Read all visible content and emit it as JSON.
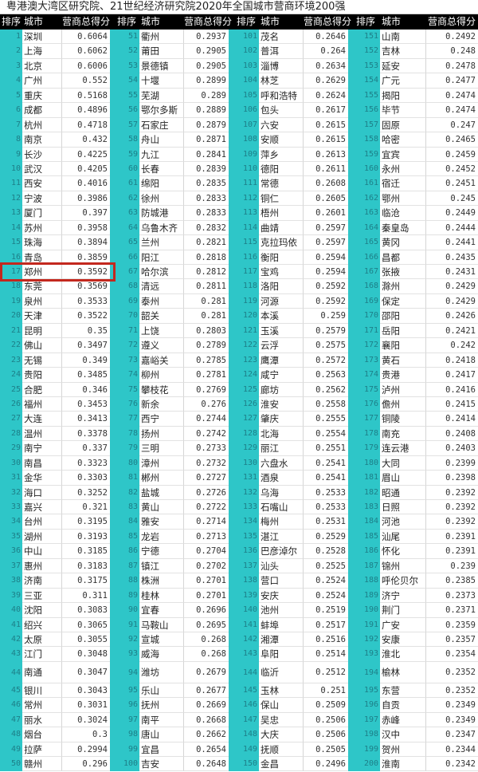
{
  "title": "粤港澳大湾区研究院、21世纪经济研究院2020年全国城市营商环境200强",
  "headers": {
    "rank": "排序",
    "city": "城市",
    "score": "营商总得分"
  },
  "highlight_color": "#c3281e",
  "teal_color": "#2ec6c8",
  "groups": [
    {
      "rows": [
        [
          "1",
          "深圳",
          "0.6064"
        ],
        [
          "2",
          "上海",
          "0.6062"
        ],
        [
          "3",
          "北京",
          "0.6006"
        ],
        [
          "4",
          "广州",
          "0.552"
        ],
        [
          "5",
          "重庆",
          "0.5168"
        ],
        [
          "6",
          "成都",
          "0.4896"
        ],
        [
          "7",
          "杭州",
          "0.4718"
        ],
        [
          "8",
          "南京",
          "0.432"
        ],
        [
          "9",
          "长沙",
          "0.4225"
        ],
        [
          "10",
          "武汉",
          "0.4205"
        ],
        [
          "11",
          "西安",
          "0.4016"
        ],
        [
          "12",
          "宁波",
          "0.3986"
        ],
        [
          "13",
          "厦门",
          "0.397"
        ],
        [
          "14",
          "苏州",
          "0.3958"
        ],
        [
          "15",
          "珠海",
          "0.3894"
        ],
        [
          "16",
          "青岛",
          "0.3859"
        ],
        [
          "17",
          "郑州",
          "0.3592"
        ],
        [
          "18",
          "东莞",
          "0.3569"
        ],
        [
          "19",
          "泉州",
          "0.3533"
        ],
        [
          "20",
          "天津",
          "0.3522"
        ],
        [
          "21",
          "昆明",
          "0.35"
        ],
        [
          "22",
          "佛山",
          "0.3497"
        ],
        [
          "23",
          "无锡",
          "0.349"
        ],
        [
          "24",
          "贵阳",
          "0.3485"
        ],
        [
          "25",
          "合肥",
          "0.346"
        ],
        [
          "26",
          "福州",
          "0.3453"
        ],
        [
          "27",
          "大连",
          "0.3413"
        ],
        [
          "28",
          "温州",
          "0.3378"
        ],
        [
          "29",
          "南宁",
          "0.337"
        ],
        [
          "30",
          "南昌",
          "0.3323"
        ],
        [
          "31",
          "金华",
          "0.3303"
        ],
        [
          "32",
          "海口",
          "0.3252"
        ],
        [
          "33",
          "嘉兴",
          "0.321"
        ],
        [
          "34",
          "台州",
          "0.3195"
        ],
        [
          "35",
          "湖州",
          "0.3193"
        ],
        [
          "36",
          "中山",
          "0.3185"
        ],
        [
          "37",
          "惠州",
          "0.3183"
        ],
        [
          "38",
          "济南",
          "0.3175"
        ],
        [
          "39",
          "三亚",
          "0.311"
        ],
        [
          "40",
          "沈阳",
          "0.3083"
        ],
        [
          "41",
          "绍兴",
          "0.3065"
        ],
        [
          "42",
          "太原",
          "0.3055"
        ],
        [
          "43",
          "江门",
          "0.3048"
        ],
        [
          "44",
          "南通",
          "0.3047"
        ],
        [
          "45",
          "银川",
          "0.3043"
        ],
        [
          "46",
          "常州",
          "0.3031"
        ],
        [
          "47",
          "丽水",
          "0.3024"
        ],
        [
          "48",
          "烟台",
          "0.3"
        ],
        [
          "49",
          "拉萨",
          "0.2994"
        ],
        [
          "50",
          "赣州",
          "0.296"
        ]
      ]
    },
    {
      "rows": [
        [
          "51",
          "衢州",
          "0.2937"
        ],
        [
          "52",
          "莆田",
          "0.2905"
        ],
        [
          "53",
          "景德镇",
          "0.2905"
        ],
        [
          "54",
          "十堰",
          "0.2899"
        ],
        [
          "55",
          "芜湖",
          "0.289"
        ],
        [
          "56",
          "鄂尔多斯",
          "0.2889"
        ],
        [
          "57",
          "石家庄",
          "0.2879"
        ],
        [
          "58",
          "舟山",
          "0.2871"
        ],
        [
          "59",
          "九江",
          "0.2841"
        ],
        [
          "60",
          "长春",
          "0.2839"
        ],
        [
          "61",
          "绵阳",
          "0.2835"
        ],
        [
          "62",
          "徐州",
          "0.2833"
        ],
        [
          "63",
          "防城港",
          "0.2833"
        ],
        [
          "64",
          "乌鲁木齐",
          "0.2832"
        ],
        [
          "65",
          "兰州",
          "0.2821"
        ],
        [
          "66",
          "阳江",
          "0.2818"
        ],
        [
          "67",
          "哈尔滨",
          "0.2812"
        ],
        [
          "68",
          "清远",
          "0.2811"
        ],
        [
          "69",
          "泰州",
          "0.281"
        ],
        [
          "70",
          "韶关",
          "0.281"
        ],
        [
          "71",
          "上饶",
          "0.2803"
        ],
        [
          "72",
          "遵义",
          "0.2789"
        ],
        [
          "73",
          "嘉峪关",
          "0.2785"
        ],
        [
          "74",
          "柳州",
          "0.2781"
        ],
        [
          "75",
          "攀枝花",
          "0.2769"
        ],
        [
          "76",
          "新余",
          "0.276"
        ],
        [
          "77",
          "西宁",
          "0.2744"
        ],
        [
          "78",
          "扬州",
          "0.2742"
        ],
        [
          "79",
          "三明",
          "0.2733"
        ],
        [
          "80",
          "漳州",
          "0.2732"
        ],
        [
          "81",
          "郴州",
          "0.2727"
        ],
        [
          "82",
          "盐城",
          "0.2726"
        ],
        [
          "83",
          "黄山",
          "0.2722"
        ],
        [
          "84",
          "雅安",
          "0.2714"
        ],
        [
          "85",
          "龙岩",
          "0.2713"
        ],
        [
          "86",
          "宁德",
          "0.2704"
        ],
        [
          "87",
          "镇江",
          "0.2702"
        ],
        [
          "88",
          "株洲",
          "0.2701"
        ],
        [
          "89",
          "桂林",
          "0.2701"
        ],
        [
          "90",
          "宜春",
          "0.2696"
        ],
        [
          "91",
          "马鞍山",
          "0.2695"
        ],
        [
          "92",
          "宣城",
          "0.268"
        ],
        [
          "93",
          "威海",
          "0.268"
        ],
        [
          "94",
          "潍坊",
          "0.2679"
        ],
        [
          "95",
          "乐山",
          "0.2677"
        ],
        [
          "96",
          "抚州",
          "0.2669"
        ],
        [
          "97",
          "南平",
          "0.2668"
        ],
        [
          "98",
          "唐山",
          "0.2662"
        ],
        [
          "99",
          "宜昌",
          "0.2654"
        ],
        [
          "100",
          "吉安",
          "0.2648"
        ]
      ]
    },
    {
      "rows": [
        [
          "101",
          "茂名",
          "0.2646"
        ],
        [
          "102",
          "普洱",
          "0.264"
        ],
        [
          "103",
          "淄博",
          "0.2634"
        ],
        [
          "104",
          "林芝",
          "0.2629"
        ],
        [
          "105",
          "呼和浩特",
          "0.2624"
        ],
        [
          "106",
          "包头",
          "0.2617"
        ],
        [
          "107",
          "六安",
          "0.2615"
        ],
        [
          "108",
          "安顺",
          "0.2615"
        ],
        [
          "109",
          "萍乡",
          "0.2613"
        ],
        [
          "110",
          "德阳",
          "0.2611"
        ],
        [
          "111",
          "常德",
          "0.2608"
        ],
        [
          "112",
          "铜仁",
          "0.2605"
        ],
        [
          "113",
          "梧州",
          "0.2601"
        ],
        [
          "114",
          "曲靖",
          "0.2597"
        ],
        [
          "115",
          "克拉玛依",
          "0.2597"
        ],
        [
          "116",
          "衡阳",
          "0.2594"
        ],
        [
          "117",
          "宝鸡",
          "0.2594"
        ],
        [
          "118",
          "洛阳",
          "0.2592"
        ],
        [
          "119",
          "河源",
          "0.2592"
        ],
        [
          "120",
          "本溪",
          "0.259"
        ],
        [
          "121",
          "玉溪",
          "0.2579"
        ],
        [
          "122",
          "云浮",
          "0.2575"
        ],
        [
          "123",
          "鹰潭",
          "0.2572"
        ],
        [
          "124",
          "咸宁",
          "0.2563"
        ],
        [
          "125",
          "廊坊",
          "0.2562"
        ],
        [
          "126",
          "淮安",
          "0.2558"
        ],
        [
          "127",
          "肇庆",
          "0.2555"
        ],
        [
          "128",
          "北海",
          "0.2554"
        ],
        [
          "129",
          "丽江",
          "0.2551"
        ],
        [
          "130",
          "六盘水",
          "0.2541"
        ],
        [
          "131",
          "酒泉",
          "0.2541"
        ],
        [
          "132",
          "乌海",
          "0.2533"
        ],
        [
          "133",
          "石嘴山",
          "0.2533"
        ],
        [
          "134",
          "梅州",
          "0.2531"
        ],
        [
          "135",
          "湛江",
          "0.2529"
        ],
        [
          "136",
          "巴彦淖尔",
          "0.2528"
        ],
        [
          "137",
          "汕头",
          "0.2525"
        ],
        [
          "138",
          "营口",
          "0.2524"
        ],
        [
          "139",
          "安庆",
          "0.2524"
        ],
        [
          "140",
          "池州",
          "0.2519"
        ],
        [
          "141",
          "蚌埠",
          "0.2517"
        ],
        [
          "142",
          "湘潭",
          "0.2516"
        ],
        [
          "143",
          "阜阳",
          "0.2514"
        ],
        [
          "144",
          "临沂",
          "0.2512"
        ],
        [
          "145",
          "玉林",
          "0.251"
        ],
        [
          "146",
          "保山",
          "0.2509"
        ],
        [
          "147",
          "吴忠",
          "0.2506"
        ],
        [
          "148",
          "大庆",
          "0.2506"
        ],
        [
          "149",
          "抚顺",
          "0.2505"
        ],
        [
          "150",
          "金昌",
          "0.2496"
        ]
      ]
    },
    {
      "rows": [
        [
          "151",
          "山南",
          "0.2492"
        ],
        [
          "152",
          "吉林",
          "0.248"
        ],
        [
          "153",
          "延安",
          "0.2478"
        ],
        [
          "154",
          "广元",
          "0.2477"
        ],
        [
          "155",
          "揭阳",
          "0.2474"
        ],
        [
          "156",
          "毕节",
          "0.2474"
        ],
        [
          "157",
          "固原",
          "0.247"
        ],
        [
          "158",
          "哈密",
          "0.2465"
        ],
        [
          "159",
          "宜宾",
          "0.2459"
        ],
        [
          "160",
          "永州",
          "0.2452"
        ],
        [
          "161",
          "宿迁",
          "0.2451"
        ],
        [
          "162",
          "鄂州",
          "0.245"
        ],
        [
          "163",
          "临沧",
          "0.2449"
        ],
        [
          "164",
          "秦皇岛",
          "0.2444"
        ],
        [
          "165",
          "黄冈",
          "0.2441"
        ],
        [
          "166",
          "昌都",
          "0.2435"
        ],
        [
          "167",
          "张掖",
          "0.2431"
        ],
        [
          "168",
          "滁州",
          "0.2429"
        ],
        [
          "169",
          "保定",
          "0.2429"
        ],
        [
          "170",
          "邵阳",
          "0.2426"
        ],
        [
          "171",
          "岳阳",
          "0.2421"
        ],
        [
          "172",
          "襄阳",
          "0.242"
        ],
        [
          "173",
          "黄石",
          "0.2418"
        ],
        [
          "174",
          "贵港",
          "0.2417"
        ],
        [
          "175",
          "泸州",
          "0.2416"
        ],
        [
          "176",
          "儋州",
          "0.2415"
        ],
        [
          "177",
          "铜陵",
          "0.2414"
        ],
        [
          "178",
          "南充",
          "0.2408"
        ],
        [
          "179",
          "连云港",
          "0.2403"
        ],
        [
          "180",
          "大同",
          "0.2399"
        ],
        [
          "181",
          "眉山",
          "0.2398"
        ],
        [
          "182",
          "昭通",
          "0.2392"
        ],
        [
          "183",
          "日照",
          "0.2392"
        ],
        [
          "184",
          "河池",
          "0.2392"
        ],
        [
          "185",
          "汕尾",
          "0.2391"
        ],
        [
          "186",
          "怀化",
          "0.2391"
        ],
        [
          "187",
          "锦州",
          "0.239"
        ],
        [
          "188",
          "呼伦贝尔",
          "0.2385"
        ],
        [
          "189",
          "济宁",
          "0.2373"
        ],
        [
          "190",
          "荆门",
          "0.2371"
        ],
        [
          "191",
          "广安",
          "0.2359"
        ],
        [
          "192",
          "安康",
          "0.2357"
        ],
        [
          "193",
          "淮北",
          "0.2354"
        ],
        [
          "194",
          "榆林",
          "0.2352"
        ],
        [
          "195",
          "东营",
          "0.2352"
        ],
        [
          "196",
          "自贡",
          "0.2349"
        ],
        [
          "197",
          "赤峰",
          "0.2349"
        ],
        [
          "198",
          "汉中",
          "0.2347"
        ],
        [
          "199",
          "贺州",
          "0.2344"
        ],
        [
          "200",
          "淮南",
          "0.2342"
        ]
      ]
    }
  ]
}
